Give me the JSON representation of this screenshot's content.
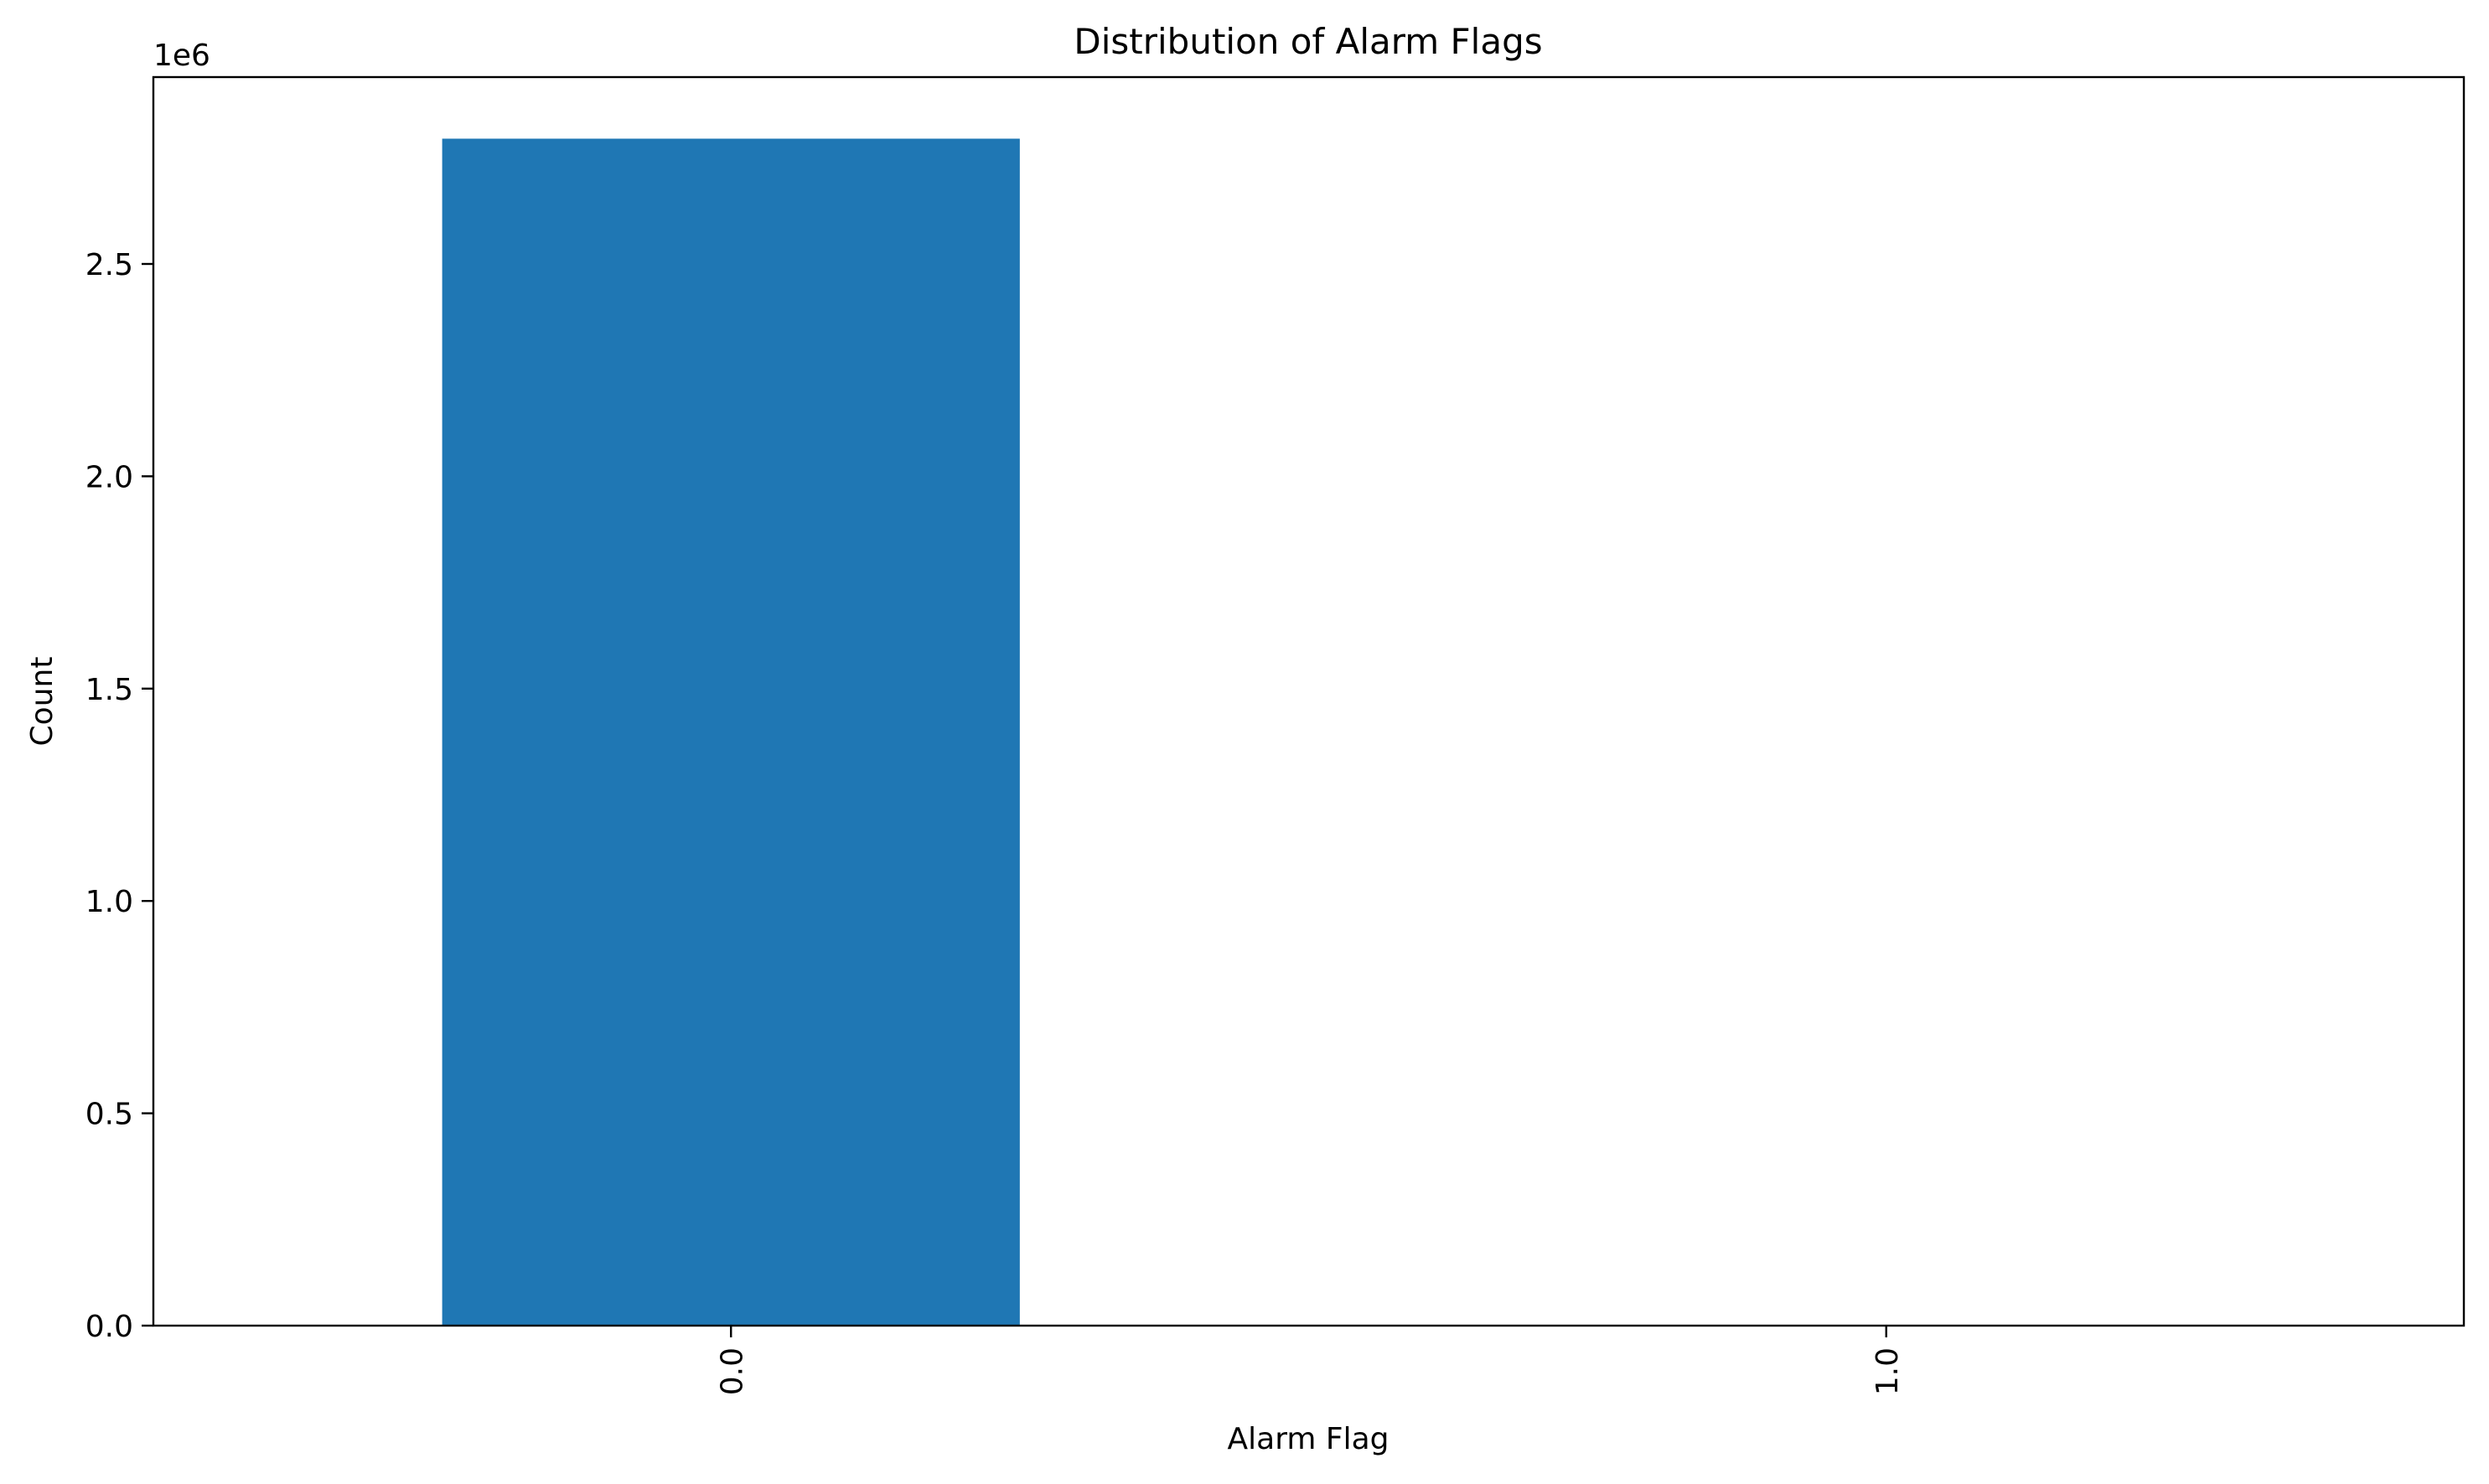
{
  "chart_data": {
    "type": "bar",
    "title": "Distribution of Alarm Flags",
    "xlabel": "Alarm Flag",
    "ylabel": "Count",
    "offset_text": "1e6",
    "categories": [
      "0.0",
      "1.0"
    ],
    "values": [
      2795000,
      0
    ],
    "ylim": [
      0,
      2940000
    ],
    "y_ticks": [
      {
        "value": 0,
        "label": "0.0"
      },
      {
        "value": 500000,
        "label": "0.5"
      },
      {
        "value": 1000000,
        "label": "1.0"
      },
      {
        "value": 1500000,
        "label": "1.5"
      },
      {
        "value": 2000000,
        "label": "2.0"
      },
      {
        "value": 2500000,
        "label": "2.5"
      }
    ],
    "grid": false,
    "legend": "none",
    "bar_color": "#1f77b4"
  }
}
